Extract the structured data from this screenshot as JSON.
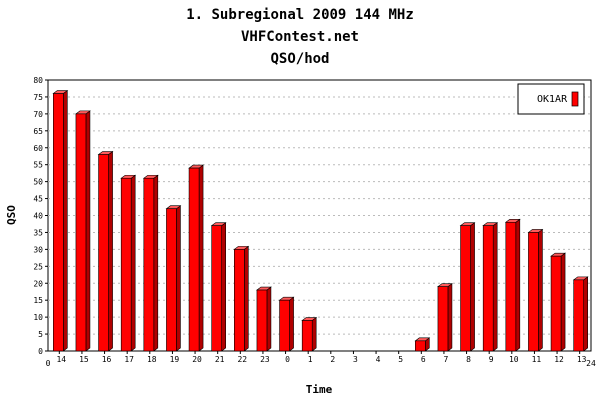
{
  "chart_data": {
    "type": "bar",
    "title": "1. Subregional 2009  144 MHz",
    "subtitle": "VHFContest.net",
    "subtitle2": "QSO/hod",
    "xlabel": "Time",
    "ylabel": "QSO",
    "ylim": [
      0,
      80
    ],
    "y_ticks": [
      0,
      5,
      10,
      15,
      20,
      25,
      30,
      35,
      40,
      45,
      50,
      55,
      60,
      65,
      70,
      75,
      80
    ],
    "x_axis_start_label": "0",
    "x_axis_end_label": "24",
    "categories": [
      "14",
      "15",
      "16",
      "17",
      "18",
      "19",
      "20",
      "21",
      "22",
      "23",
      "0",
      "1",
      "2",
      "3",
      "4",
      "5",
      "6",
      "7",
      "8",
      "9",
      "10",
      "11",
      "12",
      "13"
    ],
    "series": [
      {
        "name": "OK1AR",
        "values": [
          76,
          70,
          58,
          51,
          51,
          42,
          54,
          37,
          30,
          18,
          15,
          9,
          0,
          0,
          0,
          0,
          3,
          19,
          37,
          37,
          38,
          35,
          28,
          21
        ]
      }
    ],
    "grid": true,
    "legend_position": "top-right",
    "colors": {
      "bar_front": "#ff0000",
      "bar_side": "#b00000",
      "bar_top": "#ff5a5a",
      "grid": "#bbbbbb"
    }
  }
}
